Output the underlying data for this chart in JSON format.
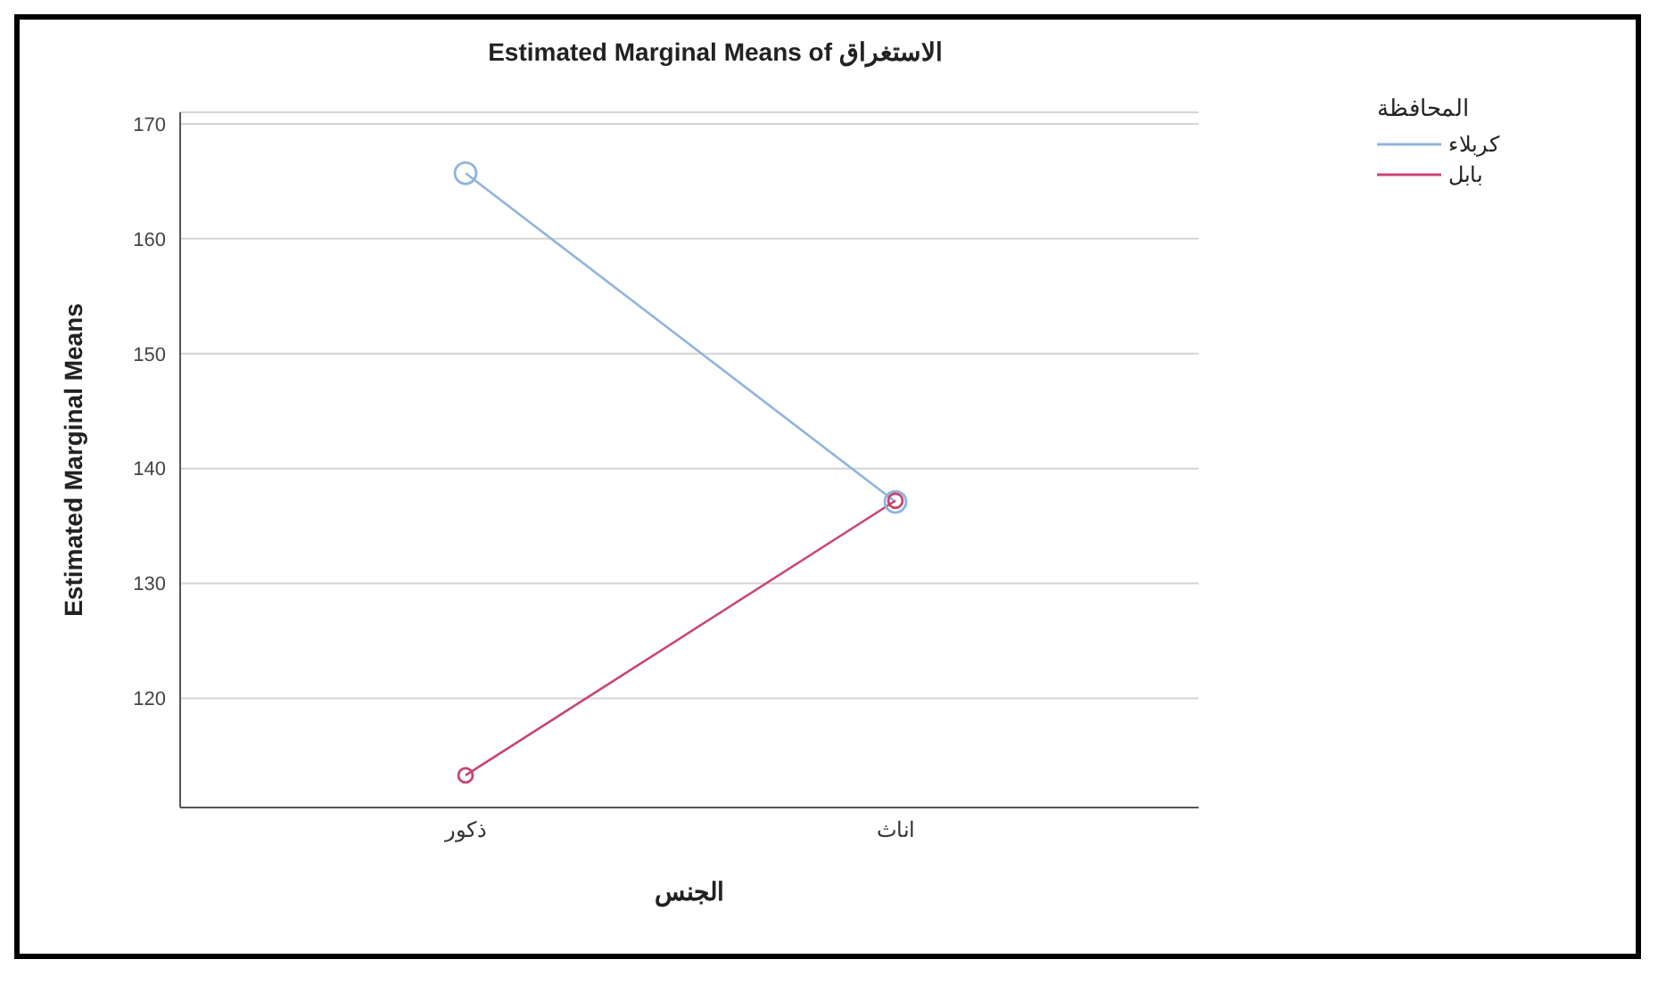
{
  "chart_data": {
    "type": "line",
    "title": "Estimated Marginal Means of الاستغراق",
    "xlabel": "الجنس",
    "ylabel": "Estimated Marginal Means",
    "legend_title": "المحافظة",
    "categories": [
      "ذكور",
      "اناث"
    ],
    "series": [
      {
        "name": "كربلاء",
        "color": "#8fb4de",
        "values": [
          165.7,
          137.1
        ]
      },
      {
        "name": "بابل",
        "color": "#c8466e",
        "values": [
          113.3,
          137.2
        ]
      }
    ],
    "ylim": [
      110.5,
      171
    ],
    "yticks": [
      120,
      130,
      140,
      150,
      160,
      170
    ],
    "grid": "y",
    "legend": "top right",
    "marker": "circle",
    "line_style": "solid"
  }
}
